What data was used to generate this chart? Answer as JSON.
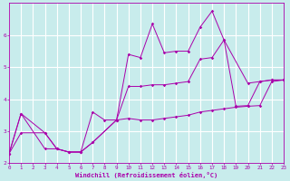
{
  "xlabel": "Windchill (Refroidissement éolien,°C)",
  "background_color": "#c8ecec",
  "line_color": "#aa00aa",
  "xlim": [
    0,
    23
  ],
  "ylim": [
    2,
    7
  ],
  "xticks": [
    0,
    1,
    2,
    3,
    4,
    5,
    6,
    7,
    8,
    9,
    10,
    11,
    12,
    13,
    14,
    15,
    16,
    17,
    18,
    19,
    20,
    21,
    22,
    23
  ],
  "yticks": [
    2,
    3,
    4,
    5,
    6
  ],
  "grid_color": "#ffffff",
  "series": [
    {
      "x": [
        0,
        1,
        3,
        4,
        5,
        6,
        7,
        9,
        10,
        11,
        12,
        13,
        14,
        15,
        16,
        17,
        18,
        19,
        20,
        21,
        22,
        23
      ],
      "y": [
        2.3,
        3.55,
        2.95,
        2.45,
        2.35,
        2.35,
        2.65,
        3.35,
        3.4,
        3.35,
        3.35,
        3.4,
        3.45,
        3.5,
        3.6,
        3.65,
        3.7,
        3.75,
        3.78,
        3.8,
        4.55,
        4.6
      ]
    },
    {
      "x": [
        0,
        1,
        3,
        4,
        5,
        6,
        7,
        9,
        10,
        11,
        12,
        13,
        14,
        15,
        16,
        17,
        18,
        20,
        21,
        22,
        23
      ],
      "y": [
        2.3,
        2.95,
        2.95,
        2.45,
        2.35,
        2.35,
        2.65,
        3.35,
        5.4,
        5.3,
        6.35,
        5.45,
        5.5,
        5.5,
        6.25,
        6.75,
        5.85,
        4.5,
        4.55,
        4.6,
        4.6
      ]
    },
    {
      "x": [
        0,
        1,
        3,
        4,
        5,
        6,
        7,
        8,
        9,
        10,
        11,
        12,
        13,
        14,
        15,
        16,
        17,
        18,
        19,
        20,
        21,
        22,
        23
      ],
      "y": [
        2.3,
        3.55,
        2.45,
        2.45,
        2.35,
        2.35,
        3.6,
        3.35,
        3.35,
        4.4,
        4.4,
        4.45,
        4.45,
        4.5,
        4.55,
        5.25,
        5.3,
        5.85,
        3.78,
        3.8,
        4.55,
        4.6,
        4.6
      ]
    }
  ]
}
